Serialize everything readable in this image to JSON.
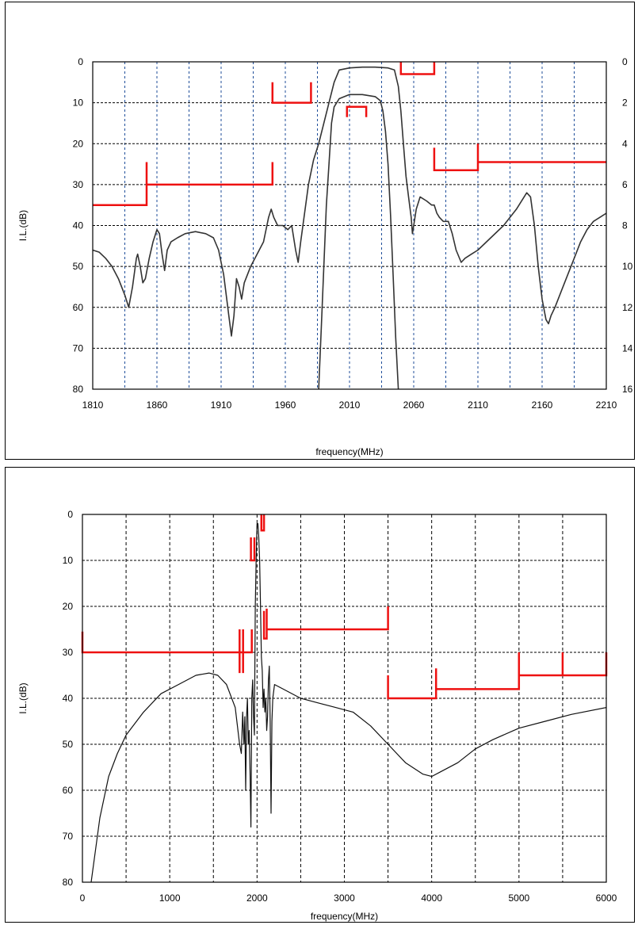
{
  "chart_data": [
    {
      "type": "line",
      "xlabel": "frequency(MHz)",
      "ylabel": "I.L.(dB)",
      "xlim": [
        1810,
        2210
      ],
      "ylim": [
        80,
        0
      ],
      "y2lim": [
        16,
        0
      ],
      "x_ticks": [
        "1810",
        "1860",
        "1910",
        "1960",
        "2010",
        "2060",
        "2110",
        "2160",
        "2210"
      ],
      "y_ticks": [
        "0",
        "10",
        "20",
        "30",
        "40",
        "50",
        "60",
        "70",
        "80"
      ],
      "y2_ticks": [
        "0",
        "2",
        "4",
        "6",
        "8",
        "10",
        "12",
        "14",
        "16"
      ],
      "grid": true,
      "series": [
        {
          "color": "#333333",
          "axis": "left",
          "points": [
            [
              1810,
              46
            ],
            [
              1815,
              46.5
            ],
            [
              1820,
              48
            ],
            [
              1825,
              50
            ],
            [
              1830,
              53
            ],
            [
              1835,
              57
            ],
            [
              1838,
              60
            ],
            [
              1841,
              55
            ],
            [
              1844,
              48
            ],
            [
              1845,
              47
            ],
            [
              1847,
              50
            ],
            [
              1849,
              54
            ],
            [
              1851,
              53
            ],
            [
              1854,
              48
            ],
            [
              1857,
              44
            ],
            [
              1860,
              41
            ],
            [
              1862,
              42
            ],
            [
              1864,
              47
            ],
            [
              1866,
              51
            ],
            [
              1868,
              46
            ],
            [
              1871,
              44
            ],
            [
              1876,
              43
            ],
            [
              1882,
              42
            ],
            [
              1890,
              41.5
            ],
            [
              1898,
              42
            ],
            [
              1904,
              43
            ],
            [
              1908,
              46
            ],
            [
              1912,
              52
            ],
            [
              1916,
              62
            ],
            [
              1918,
              67
            ],
            [
              1920,
              62
            ],
            [
              1922,
              53
            ],
            [
              1924,
              55
            ],
            [
              1926,
              58
            ],
            [
              1928,
              54
            ],
            [
              1933,
              50
            ],
            [
              1938,
              47
            ],
            [
              1943,
              44
            ],
            [
              1947,
              38
            ],
            [
              1949,
              36
            ],
            [
              1951,
              38
            ],
            [
              1954,
              40
            ],
            [
              1958,
              40
            ],
            [
              1962,
              41
            ],
            [
              1965,
              40
            ],
            [
              1968,
              46
            ],
            [
              1970,
              49
            ],
            [
              1972,
              44
            ],
            [
              1975,
              37
            ],
            [
              1978,
              30
            ],
            [
              1982,
              24
            ],
            [
              1986,
              20
            ],
            [
              1990,
              15
            ],
            [
              1994,
              10
            ],
            [
              1998,
              5
            ],
            [
              2002,
              2
            ],
            [
              2010,
              1.5
            ],
            [
              2020,
              1.3
            ],
            [
              2030,
              1.3
            ],
            [
              2040,
              1.5
            ],
            [
              2045,
              2
            ],
            [
              2048,
              6
            ],
            [
              2050,
              12
            ],
            [
              2052,
              20
            ],
            [
              2054,
              28
            ],
            [
              2056,
              33
            ],
            [
              2058,
              38
            ],
            [
              2059,
              42
            ],
            [
              2060,
              40
            ],
            [
              2062,
              36
            ],
            [
              2065,
              33
            ],
            [
              2070,
              34
            ],
            [
              2074,
              35
            ],
            [
              2076,
              35
            ],
            [
              2078,
              37
            ],
            [
              2080,
              38
            ],
            [
              2083,
              39
            ],
            [
              2087,
              39
            ],
            [
              2090,
              42
            ],
            [
              2093,
              46
            ],
            [
              2097,
              49
            ],
            [
              2100,
              48
            ],
            [
              2105,
              47
            ],
            [
              2110,
              46
            ],
            [
              2120,
              43
            ],
            [
              2130,
              40
            ],
            [
              2140,
              36
            ],
            [
              2148,
              32
            ],
            [
              2151,
              33
            ],
            [
              2154,
              40
            ],
            [
              2157,
              50
            ],
            [
              2160,
              58
            ],
            [
              2163,
              63
            ],
            [
              2165,
              64
            ],
            [
              2167,
              62
            ],
            [
              2170,
              60
            ],
            [
              2175,
              56
            ],
            [
              2180,
              52
            ],
            [
              2185,
              48
            ],
            [
              2190,
              44
            ],
            [
              2195,
              41
            ],
            [
              2200,
              39
            ],
            [
              2205,
              38
            ],
            [
              2210,
              37
            ]
          ]
        },
        {
          "color": "#333333",
          "axis": "right",
          "points": [
            [
              1986,
              16
            ],
            [
              1988,
              13
            ],
            [
              1990,
              10
            ],
            [
              1992,
              7
            ],
            [
              1994,
              5
            ],
            [
              1996,
              3
            ],
            [
              1998,
              2.2
            ],
            [
              2002,
              1.8
            ],
            [
              2010,
              1.6
            ],
            [
              2020,
              1.6
            ],
            [
              2030,
              1.7
            ],
            [
              2034,
              1.9
            ],
            [
              2036,
              2.4
            ],
            [
              2038,
              3.4
            ],
            [
              2040,
              5
            ],
            [
              2042,
              7.5
            ],
            [
              2044,
              10.5
            ],
            [
              2046,
              13.5
            ],
            [
              2048,
              16
            ]
          ]
        }
      ],
      "masks": [
        {
          "color": "#ee1111",
          "points": [
            [
              1810,
              35
            ],
            [
              1852,
              35
            ],
            [
              1852,
              24.5
            ],
            [
              1852,
              30
            ],
            [
              1950,
              30
            ],
            [
              1950,
              24.5
            ]
          ]
        },
        {
          "color": "#ee1111",
          "points": [
            [
              1950,
              5
            ],
            [
              1950,
              10
            ],
            [
              1980,
              10
            ],
            [
              1980,
              5
            ]
          ]
        },
        {
          "color": "#ee1111",
          "points": [
            [
              2008,
              13.5
            ],
            [
              2008,
              11
            ],
            [
              2023,
              11
            ],
            [
              2023,
              13.5
            ]
          ]
        },
        {
          "color": "#ee1111",
          "points": [
            [
              2050,
              0
            ],
            [
              2050,
              3
            ],
            [
              2076,
              3
            ],
            [
              2076,
              0
            ]
          ]
        },
        {
          "color": "#ee1111",
          "points": [
            [
              2076,
              21
            ],
            [
              2076,
              26.5
            ],
            [
              2110,
              26.5
            ],
            [
              2110,
              20
            ],
            [
              2110,
              24.5
            ],
            [
              2210,
              24.5
            ]
          ]
        }
      ]
    },
    {
      "type": "line",
      "xlabel": "frequency(MHz)",
      "ylabel": "I.L.(dB)",
      "xlim": [
        0,
        6000
      ],
      "ylim": [
        80,
        0
      ],
      "x_ticks": [
        "0",
        "1000",
        "2000",
        "3000",
        "4000",
        "5000",
        "6000"
      ],
      "y_ticks": [
        "0",
        "10",
        "20",
        "30",
        "40",
        "50",
        "60",
        "70",
        "80"
      ],
      "grid": true,
      "series": [
        {
          "color": "#111111",
          "axis": "left",
          "points": [
            [
              100,
              80
            ],
            [
              150,
              73
            ],
            [
              200,
              66
            ],
            [
              300,
              57
            ],
            [
              400,
              52
            ],
            [
              500,
              48
            ],
            [
              700,
              43
            ],
            [
              900,
              39
            ],
            [
              1100,
              37
            ],
            [
              1300,
              35
            ],
            [
              1450,
              34.5
            ],
            [
              1550,
              35
            ],
            [
              1650,
              37
            ],
            [
              1750,
              42
            ],
            [
              1800,
              50
            ],
            [
              1820,
              52
            ],
            [
              1835,
              43
            ],
            [
              1850,
              50
            ],
            [
              1860,
              44
            ],
            [
              1870,
              60
            ],
            [
              1880,
              44
            ],
            [
              1890,
              40
            ],
            [
              1900,
              50
            ],
            [
              1910,
              47
            ],
            [
              1920,
              56
            ],
            [
              1930,
              68
            ],
            [
              1940,
              40
            ],
            [
              1950,
              36
            ],
            [
              1960,
              44
            ],
            [
              1970,
              48
            ],
            [
              1980,
              20
            ],
            [
              1990,
              10
            ],
            [
              2000,
              2
            ],
            [
              2010,
              2
            ],
            [
              2020,
              5
            ],
            [
              2030,
              10
            ],
            [
              2040,
              20
            ],
            [
              2050,
              31
            ],
            [
              2060,
              34
            ],
            [
              2070,
              42
            ],
            [
              2080,
              38
            ],
            [
              2090,
              43
            ],
            [
              2100,
              40
            ],
            [
              2110,
              47
            ],
            [
              2120,
              44
            ],
            [
              2130,
              36
            ],
            [
              2140,
              33
            ],
            [
              2150,
              45
            ],
            [
              2160,
              65
            ],
            [
              2170,
              45
            ],
            [
              2180,
              40
            ],
            [
              2200,
              37
            ],
            [
              2300,
              38
            ],
            [
              2500,
              40
            ],
            [
              2700,
              41
            ],
            [
              2900,
              42
            ],
            [
              3100,
              43
            ],
            [
              3300,
              46
            ],
            [
              3500,
              50
            ],
            [
              3700,
              54
            ],
            [
              3900,
              56.5
            ],
            [
              4000,
              57
            ],
            [
              4100,
              56
            ],
            [
              4300,
              54
            ],
            [
              4500,
              51
            ],
            [
              4700,
              49
            ],
            [
              5000,
              46.5
            ],
            [
              5300,
              45
            ],
            [
              5600,
              43.5
            ],
            [
              6000,
              42
            ]
          ]
        }
      ],
      "masks": [
        {
          "color": "#ee1111",
          "points": [
            [
              0,
              25.5
            ],
            [
              0,
              30
            ],
            [
              1800,
              30
            ],
            [
              1800,
              34.5
            ],
            [
              1800,
              25
            ],
            [
              1800,
              30
            ],
            [
              1840,
              30
            ],
            [
              1840,
              34.5
            ],
            [
              1840,
              25
            ],
            [
              1840,
              30
            ],
            [
              1940,
              30
            ],
            [
              1940,
              25
            ]
          ]
        },
        {
          "color": "#ee1111",
          "points": [
            [
              1930,
              5
            ],
            [
              1930,
              10
            ],
            [
              1970,
              10
            ],
            [
              1970,
              5
            ]
          ]
        },
        {
          "color": "#ee1111",
          "points": [
            [
              2050,
              0
            ],
            [
              2050,
              3.5
            ],
            [
              2080,
              3.5
            ],
            [
              2080,
              0
            ]
          ]
        },
        {
          "color": "#ee1111",
          "points": [
            [
              2080,
              21
            ],
            [
              2080,
              27
            ],
            [
              2110,
              27
            ],
            [
              2110,
              20.5
            ],
            [
              2110,
              25
            ],
            [
              3500,
              25
            ],
            [
              3500,
              20
            ]
          ]
        },
        {
          "color": "#ee1111",
          "points": [
            [
              3500,
              35
            ],
            [
              3500,
              40
            ],
            [
              4050,
              40
            ],
            [
              4050,
              33.5
            ],
            [
              4050,
              38
            ],
            [
              5000,
              38
            ],
            [
              5000,
              30
            ],
            [
              5000,
              35
            ],
            [
              5500,
              35
            ],
            [
              5500,
              30
            ],
            [
              5500,
              35
            ],
            [
              6000,
              35
            ],
            [
              6000,
              30
            ]
          ]
        }
      ]
    }
  ]
}
